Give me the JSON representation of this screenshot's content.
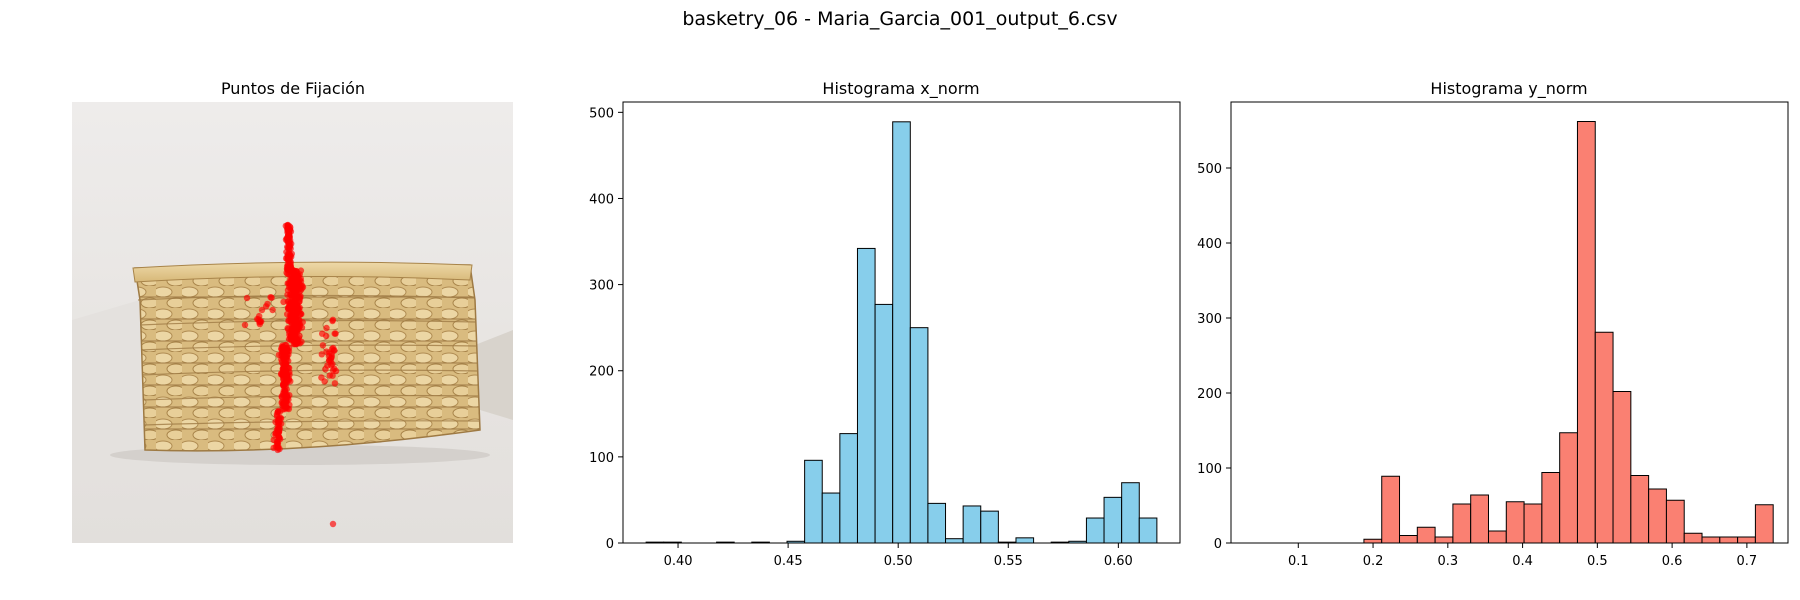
{
  "figure": {
    "suptitle": "basketry_06 - Maria_Garcia_001_output_6.csv"
  },
  "image_panel": {
    "title": "Puntos de Fijación",
    "fixation_color": "#ff0000",
    "basket_colors": {
      "background": "#ece9e6",
      "weave_light": "#e6cf9c",
      "weave_dark": "#b8955a"
    }
  },
  "chart_data": [
    {
      "type": "bar",
      "title": "Histograma x_norm",
      "color": "#87ceeb",
      "edgecolor": "#000000",
      "xlim": [
        0.375,
        0.628
      ],
      "ylim": [
        0,
        512
      ],
      "xticks": [
        0.4,
        0.45,
        0.5,
        0.55,
        0.6
      ],
      "xtick_labels": [
        "0.40",
        "0.45",
        "0.50",
        "0.55",
        "0.60"
      ],
      "yticks": [
        0,
        100,
        200,
        300,
        400,
        500
      ],
      "ytick_labels": [
        "0",
        "100",
        "200",
        "300",
        "400",
        "500"
      ],
      "bin_edges": [
        0.3855,
        0.3935,
        0.4015,
        0.4095,
        0.4175,
        0.4255,
        0.4335,
        0.4415,
        0.4495,
        0.4575,
        0.4655,
        0.4735,
        0.4815,
        0.4895,
        0.4975,
        0.5055,
        0.5135,
        0.5215,
        0.5295,
        0.5375,
        0.5455,
        0.5535,
        0.5615,
        0.5695,
        0.5775,
        0.5855,
        0.5935,
        0.6015,
        0.6095,
        0.6175
      ],
      "values": [
        1,
        1,
        0,
        0,
        1,
        0,
        1,
        0,
        2,
        96,
        58,
        127,
        342,
        277,
        489,
        250,
        46,
        5,
        43,
        37,
        1,
        6,
        0,
        1,
        2,
        29,
        53,
        70,
        29
      ]
    },
    {
      "type": "bar",
      "title": "Histograma y_norm",
      "color": "#fa8072",
      "edgecolor": "#000000",
      "xlim": [
        0.01,
        0.755
      ],
      "ylim": [
        0,
        588
      ],
      "xticks": [
        0.1,
        0.2,
        0.3,
        0.4,
        0.5,
        0.6,
        0.7
      ],
      "xtick_labels": [
        "0.1",
        "0.2",
        "0.3",
        "0.4",
        "0.5",
        "0.6",
        "0.7"
      ],
      "yticks": [
        0,
        100,
        200,
        300,
        400,
        500
      ],
      "ytick_labels": [
        "0",
        "100",
        "200",
        "300",
        "400",
        "500"
      ],
      "bin_edges": [
        0.045,
        0.0688,
        0.0926,
        0.1164,
        0.1402,
        0.164,
        0.1878,
        0.2116,
        0.2354,
        0.2592,
        0.283,
        0.3068,
        0.3306,
        0.3544,
        0.3782,
        0.402,
        0.4258,
        0.4496,
        0.4734,
        0.4972,
        0.521,
        0.5448,
        0.5686,
        0.5924,
        0.6162,
        0.64,
        0.6638,
        0.6876,
        0.7114,
        0.7352
      ],
      "values": [
        0,
        0,
        0,
        0,
        0,
        0,
        5,
        89,
        10,
        21,
        8,
        52,
        64,
        16,
        55,
        52,
        94,
        147,
        562,
        281,
        202,
        90,
        72,
        57,
        13,
        8,
        8,
        8,
        51
      ]
    }
  ]
}
